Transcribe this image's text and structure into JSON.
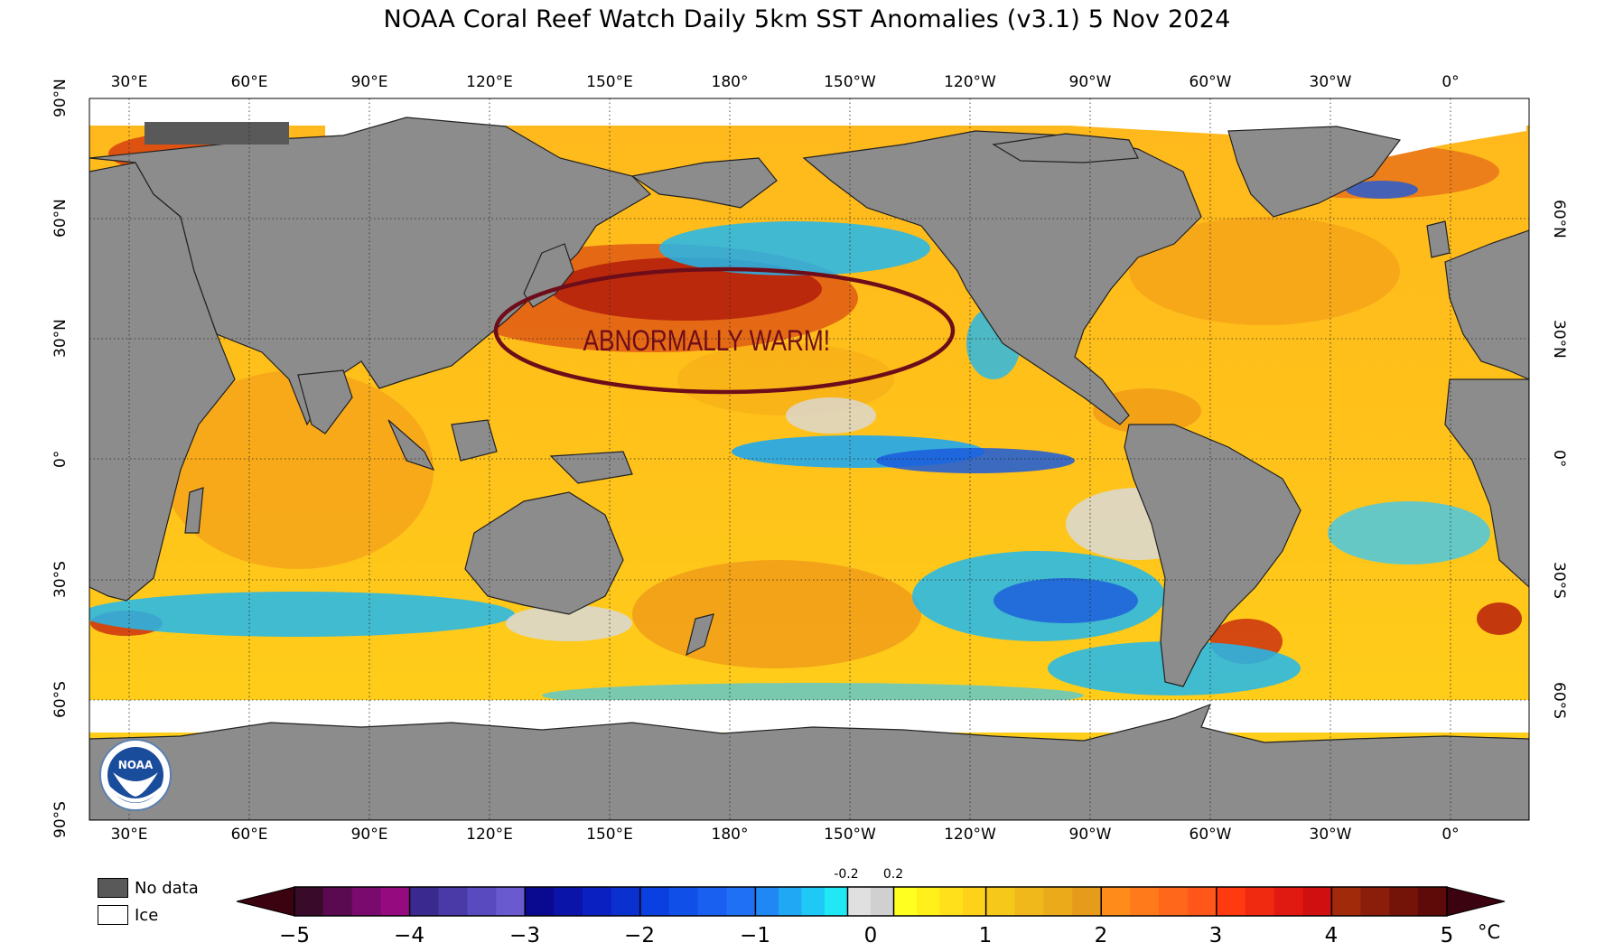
{
  "title": "NOAA Coral Reef Watch Daily 5km SST Anomalies  (v3.1)   5 Nov 2024",
  "annotation": {
    "text": "ABNORMALLY WARM!",
    "color": "#6e0d1a"
  },
  "lon_labels": [
    "30°E",
    "60°E",
    "90°E",
    "120°E",
    "150°E",
    "180°",
    "150°W",
    "120°W",
    "90°W",
    "60°W",
    "30°W",
    "0°"
  ],
  "lat_labels_left": [
    "90°N",
    "60°N",
    "30°N",
    "0°",
    "30°S",
    "60°S",
    "90°S"
  ],
  "lat_labels_right": [
    "60°N",
    "30°N",
    "0°",
    "30°S",
    "60°S"
  ],
  "legend": {
    "no_data": "No data",
    "ice": "Ice",
    "no_data_color": "#595959",
    "ice_color": "#ffffff"
  },
  "colorbar": {
    "unit": "°C",
    "ticks": [
      "−5",
      "−4",
      "−3",
      "−2",
      "−1",
      "0",
      "1",
      "2",
      "3",
      "4",
      "5"
    ],
    "small_ticks": [
      "-0.2",
      "0.2"
    ],
    "range": [
      -5,
      5
    ],
    "extend": "both"
  },
  "colors": {
    "land": "#8c8c8c",
    "neutral": "#d9d9d9",
    "warm": "#ffd21a",
    "hot": "#f08a1a",
    "very_hot": "#c8280f",
    "cool": "#20b8f0",
    "cold": "#1a5adc"
  },
  "logo": {
    "text": "NOAA"
  }
}
